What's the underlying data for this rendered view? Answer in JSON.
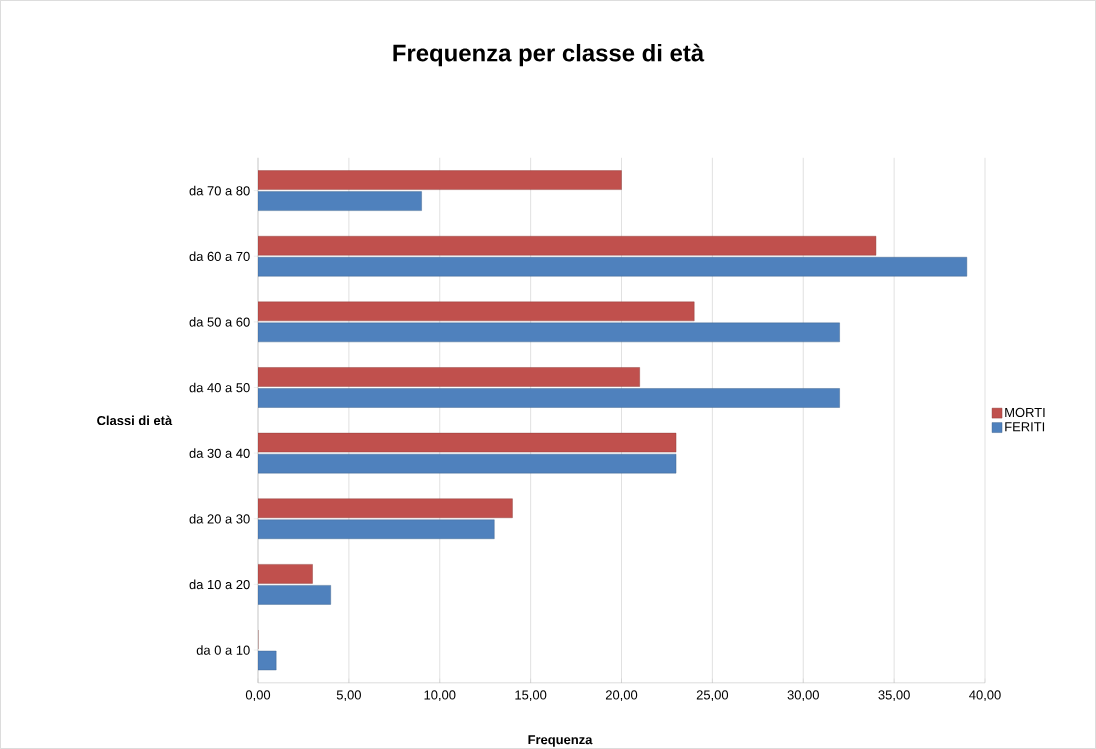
{
  "chart_data": {
    "type": "bar",
    "orientation": "horizontal",
    "title": "Frequenza per classe di età",
    "xlabel": "Frequenza",
    "ylabel": "Classi di età",
    "categories": [
      "da 70 a 80",
      "da 60 a 70",
      "da 50 a 60",
      "da 40 a 50",
      "da 30 a 40",
      "da 20 a 30",
      "da 10 a 20",
      "da 0 a 10"
    ],
    "series": [
      {
        "name": "MORTI",
        "color": "#c0504d",
        "values": [
          20,
          34,
          24,
          21,
          23,
          14,
          3,
          0
        ]
      },
      {
        "name": "FERITI",
        "color": "#4f81bd",
        "values": [
          9,
          39,
          32,
          32,
          23,
          13,
          4,
          1
        ]
      }
    ],
    "xlim": [
      0,
      40
    ],
    "xticks": [
      {
        "value": 0,
        "label": "0,00"
      },
      {
        "value": 5,
        "label": "5,00"
      },
      {
        "value": 10,
        "label": "10,00"
      },
      {
        "value": 15,
        "label": "15,00"
      },
      {
        "value": 20,
        "label": "20,00"
      },
      {
        "value": 25,
        "label": "25,00"
      },
      {
        "value": 30,
        "label": "30,00"
      },
      {
        "value": 35,
        "label": "35,00"
      },
      {
        "value": 40,
        "label": "40,00"
      }
    ],
    "grid": "x",
    "legend": "right"
  }
}
